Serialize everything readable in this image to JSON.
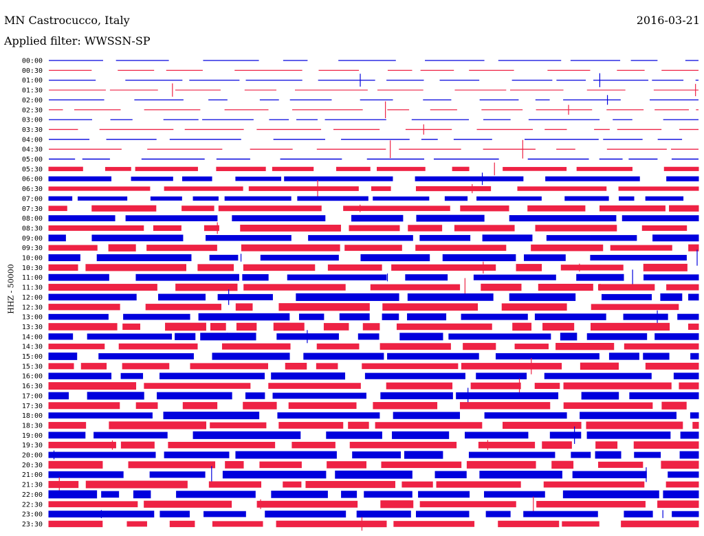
{
  "header": {
    "station": "MN Castrocucco, Italy",
    "date": "2016-03-21",
    "filter": "Applied filter: WWSSN-SP"
  },
  "side_label": "HHZ - 50000",
  "chart_data": {
    "type": "helicorder",
    "title": "MN Castrocucco, Italy",
    "subtitle": "Applied filter: WWSSN-SP",
    "date": "2016-03-21",
    "ylabel": "HHZ - 50000",
    "colors": [
      "#0000dd",
      "#ee2244"
    ],
    "rows": [
      "00:00",
      "00:30",
      "01:00",
      "01:30",
      "02:00",
      "02:30",
      "03:00",
      "03:30",
      "04:00",
      "04:30",
      "05:00",
      "05:30",
      "06:00",
      "06:30",
      "07:00",
      "07:30",
      "08:00",
      "08:30",
      "09:00",
      "09:30",
      "10:00",
      "10:30",
      "11:00",
      "11:30",
      "12:00",
      "12:30",
      "13:00",
      "13:30",
      "14:00",
      "14:30",
      "15:00",
      "15:30",
      "16:00",
      "16:30",
      "17:00",
      "17:30",
      "18:00",
      "18:30",
      "19:00",
      "19:30",
      "20:00",
      "20:30",
      "21:00",
      "21:30",
      "22:00",
      "22:30",
      "23:00",
      "23:30"
    ],
    "activity": [
      0.05,
      0.06,
      0.06,
      0.05,
      0.07,
      0.06,
      0.06,
      0.08,
      0.07,
      0.1,
      0.15,
      0.25,
      0.35,
      0.35,
      0.3,
      0.55,
      0.6,
      0.6,
      0.7,
      0.65,
      0.65,
      0.7,
      0.6,
      0.75,
      0.75,
      0.75,
      0.7,
      0.8,
      0.75,
      0.65,
      0.7,
      0.7,
      0.65,
      0.7,
      0.75,
      0.75,
      0.75,
      0.75,
      0.75,
      0.7,
      0.75,
      0.8,
      0.8,
      0.75,
      0.8,
      0.75,
      0.7,
      0.6
    ]
  }
}
